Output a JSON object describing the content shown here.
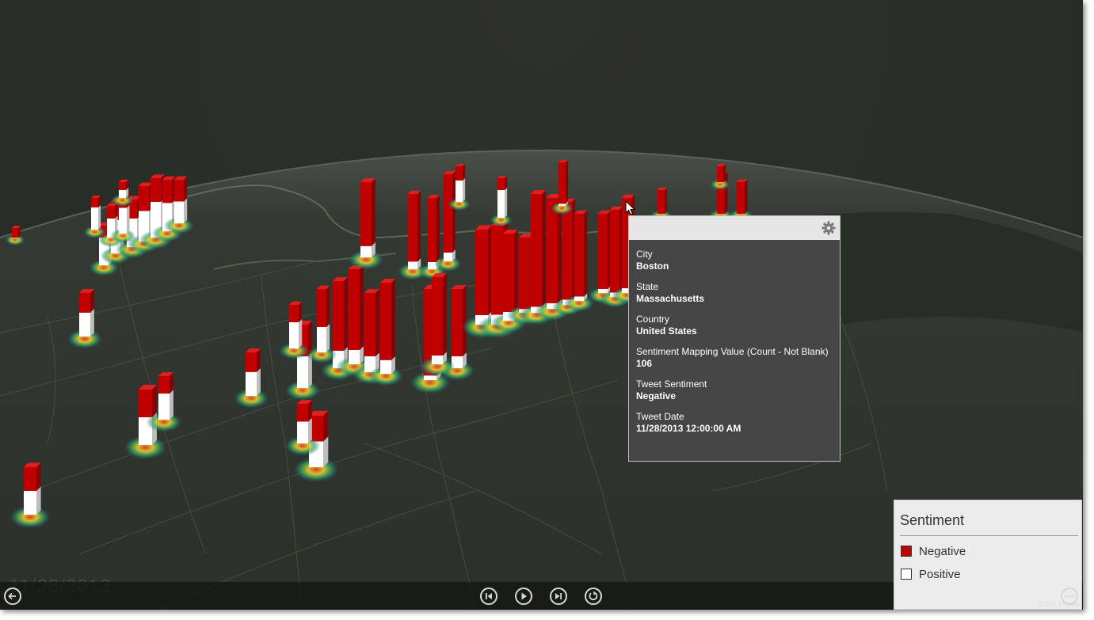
{
  "tooltip": {
    "fields": [
      {
        "label": "City",
        "value": "Boston"
      },
      {
        "label": "State",
        "value": "Massachusetts"
      },
      {
        "label": "Country",
        "value": "United States"
      },
      {
        "label": "Sentiment Mapping Value (Count - Not Blank)",
        "value": "106"
      },
      {
        "label": "Tweet Sentiment",
        "value": "Negative"
      },
      {
        "label": "Tweet Date",
        "value": "11/28/2013 12:00:00 AM"
      }
    ],
    "settings_icon": "gear-icon"
  },
  "legend": {
    "title": "Sentiment",
    "items": [
      {
        "label": "Negative",
        "color": "#c00000"
      },
      {
        "label": "Positive",
        "color": "#ffffff"
      }
    ]
  },
  "timeline": {
    "date": "11/28/2013",
    "controls": [
      "skip-back-icon",
      "play-icon",
      "skip-forward-icon",
      "loop-icon"
    ]
  },
  "colors": {
    "negative": "#c00000",
    "positive": "#ffffff",
    "background": "#2a2f28"
  },
  "copyright": "© 2013 Nokia"
}
